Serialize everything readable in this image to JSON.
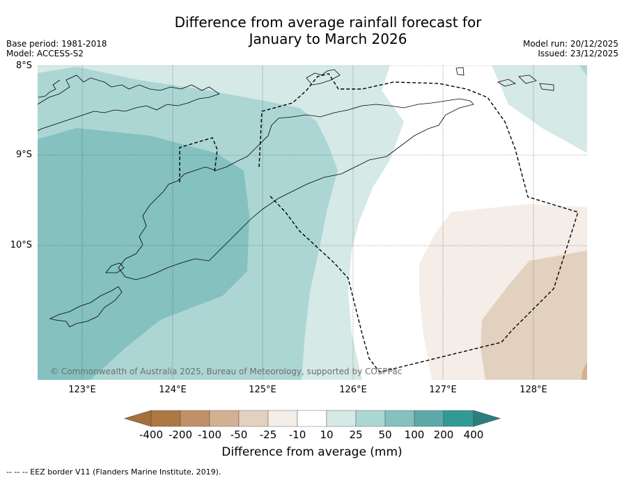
{
  "header": {
    "title_line1": "Difference from average rainfall forecast for",
    "title_line2": "January to March 2026",
    "base_period": "Base period: 1981-2018",
    "model": "Model: ACCESS-S2",
    "model_run": "Model run: 20/12/2025",
    "issued": "Issued: 23/12/2025"
  },
  "map": {
    "latitude_labels": [
      "8°S",
      "9°S",
      "10°S"
    ],
    "longitude_labels": [
      "123°E",
      "124°E",
      "125°E",
      "126°E",
      "127°E",
      "128°E"
    ],
    "copyright": "© Commonwealth of Australia 2025, Bureau of Meteorology, supported by COSPPac",
    "eez_style": "dashed"
  },
  "legend": {
    "title": "Difference from average (mm)",
    "ticks": [
      "-400",
      "-200",
      "-100",
      "-50",
      "-25",
      "-10",
      "10",
      "25",
      "50",
      "100",
      "200",
      "400"
    ],
    "colors": [
      "#a6703a",
      "#ad7743",
      "#c09168",
      "#d2b192",
      "#e3d1bf",
      "#f4ede8",
      "#ffffff",
      "#d5e9e7",
      "#acd6d4",
      "#84c1bf",
      "#5ca9a8",
      "#319a97",
      "#2a7f7c"
    ]
  },
  "footer": {
    "eez_note": "-- -- -- EEZ border V11 (Flanders Marine Institute, 2019)."
  }
}
